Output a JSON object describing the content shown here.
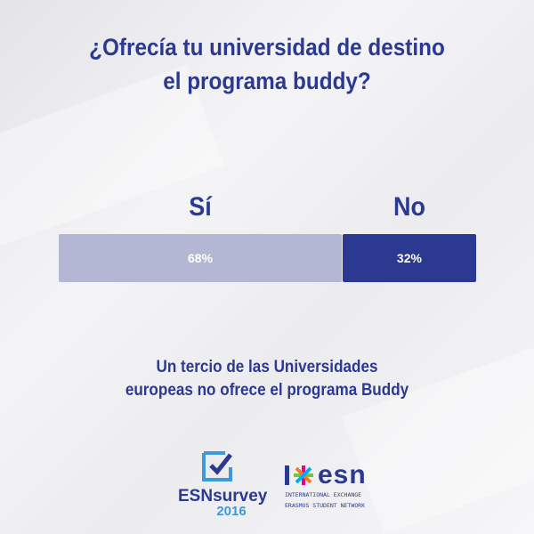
{
  "title_line1": "¿Ofrecía tu universidad de destino",
  "title_line2": "el programa buddy?",
  "chart_data": {
    "type": "bar",
    "orientation": "horizontal-stacked",
    "categories": [
      "Sí",
      "No"
    ],
    "values": [
      68,
      32
    ],
    "value_labels": [
      "68%",
      "32%"
    ],
    "colors": [
      "#b4b7d4",
      "#2b3990"
    ]
  },
  "subtitle_line1": "Un tercio de las Universidades",
  "subtitle_line2": "europeas no ofrece el programa Buddy",
  "logos": {
    "survey_name": "ESNsurvey",
    "survey_year": "2016",
    "esn_word": "esn",
    "esn_tag1": "INTERNATIONAL EXCHANGE",
    "esn_tag2": "ERASMUS STUDENT NETWORK"
  },
  "colors": {
    "primary": "#2b3990",
    "light": "#b4b7d4",
    "accent": "#3d9ad8"
  }
}
